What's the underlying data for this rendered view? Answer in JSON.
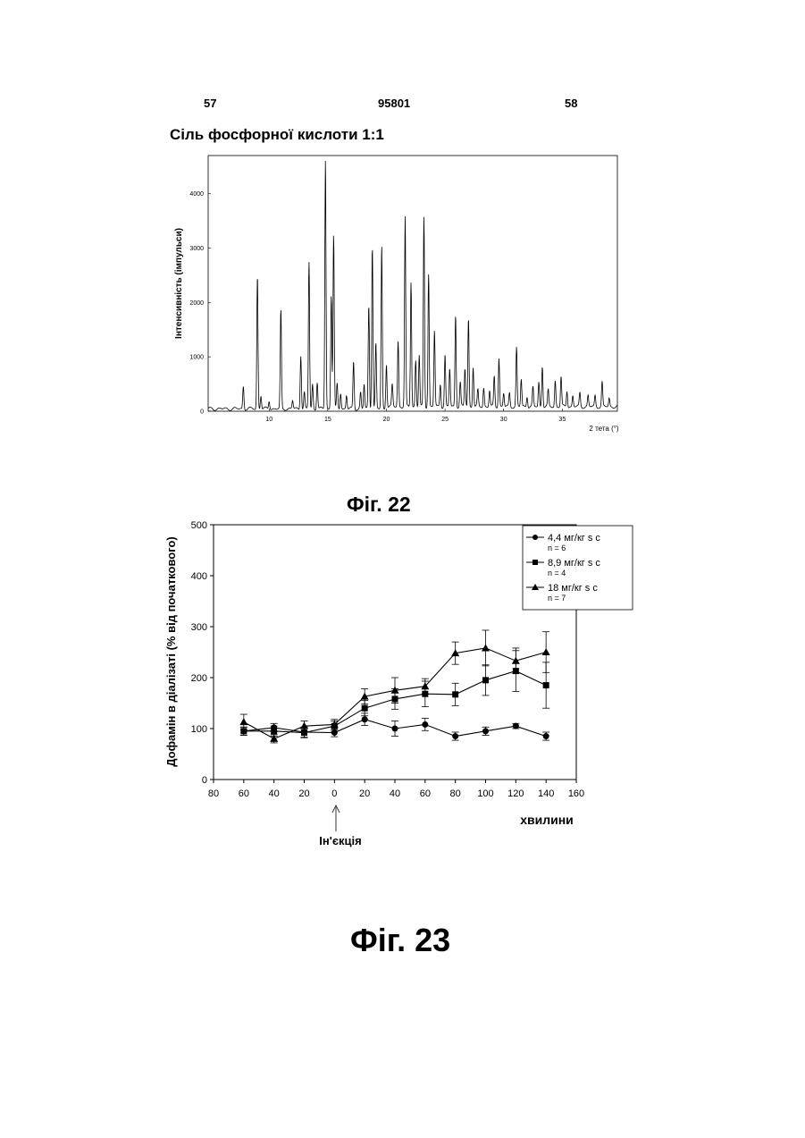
{
  "header": {
    "left": "57",
    "center": "95801",
    "right": "58"
  },
  "figure22": {
    "title": "Сіль фосфорної кислоти 1:1",
    "caption": "Фіг. 22",
    "chart_data": {
      "type": "line",
      "title": "Сіль фосфорної кислоти 1:1",
      "xlabel": "2 тета (°)",
      "ylabel": "Інтенсивність (імпульси)",
      "xlim": [
        4.8,
        39.7
      ],
      "ylim": [
        0,
        4700
      ],
      "xticks": [
        "10",
        "15",
        "20",
        "25",
        "30",
        "35"
      ],
      "yticks": [
        "0",
        "1000",
        "2000",
        "3000",
        "4000"
      ],
      "peaks": [
        {
          "x": 7.8,
          "y": 420
        },
        {
          "x": 9.0,
          "y": 2450
        },
        {
          "x": 9.3,
          "y": 250
        },
        {
          "x": 10.0,
          "y": 150
        },
        {
          "x": 11.0,
          "y": 1800
        },
        {
          "x": 12.0,
          "y": 150
        },
        {
          "x": 12.7,
          "y": 1000
        },
        {
          "x": 13.0,
          "y": 300
        },
        {
          "x": 13.4,
          "y": 2700
        },
        {
          "x": 13.7,
          "y": 450
        },
        {
          "x": 14.1,
          "y": 500
        },
        {
          "x": 14.8,
          "y": 4580
        },
        {
          "x": 15.3,
          "y": 2100
        },
        {
          "x": 15.5,
          "y": 3200
        },
        {
          "x": 15.8,
          "y": 450
        },
        {
          "x": 16.1,
          "y": 300
        },
        {
          "x": 16.6,
          "y": 250
        },
        {
          "x": 17.2,
          "y": 870
        },
        {
          "x": 17.8,
          "y": 300
        },
        {
          "x": 18.1,
          "y": 450
        },
        {
          "x": 18.5,
          "y": 1900
        },
        {
          "x": 18.8,
          "y": 3000
        },
        {
          "x": 19.1,
          "y": 1200
        },
        {
          "x": 19.6,
          "y": 3000
        },
        {
          "x": 20.0,
          "y": 800
        },
        {
          "x": 20.5,
          "y": 400
        },
        {
          "x": 21.0,
          "y": 1200
        },
        {
          "x": 21.6,
          "y": 3480
        },
        {
          "x": 22.1,
          "y": 2300
        },
        {
          "x": 22.5,
          "y": 850
        },
        {
          "x": 22.8,
          "y": 950
        },
        {
          "x": 23.2,
          "y": 3480
        },
        {
          "x": 23.6,
          "y": 2450
        },
        {
          "x": 24.1,
          "y": 1400
        },
        {
          "x": 24.6,
          "y": 420
        },
        {
          "x": 25.0,
          "y": 950
        },
        {
          "x": 25.4,
          "y": 700
        },
        {
          "x": 25.9,
          "y": 1700
        },
        {
          "x": 26.3,
          "y": 450
        },
        {
          "x": 26.7,
          "y": 700
        },
        {
          "x": 27.0,
          "y": 1620
        },
        {
          "x": 27.4,
          "y": 750
        },
        {
          "x": 27.8,
          "y": 300
        },
        {
          "x": 28.3,
          "y": 350
        },
        {
          "x": 28.8,
          "y": 300
        },
        {
          "x": 29.2,
          "y": 550
        },
        {
          "x": 29.6,
          "y": 900
        },
        {
          "x": 30.0,
          "y": 250
        },
        {
          "x": 30.5,
          "y": 250
        },
        {
          "x": 31.1,
          "y": 1080
        },
        {
          "x": 31.5,
          "y": 500
        },
        {
          "x": 32.0,
          "y": 200
        },
        {
          "x": 32.5,
          "y": 350
        },
        {
          "x": 33.0,
          "y": 450
        },
        {
          "x": 33.3,
          "y": 750
        },
        {
          "x": 33.8,
          "y": 300
        },
        {
          "x": 34.4,
          "y": 480
        },
        {
          "x": 34.9,
          "y": 550
        },
        {
          "x": 35.4,
          "y": 300
        },
        {
          "x": 35.9,
          "y": 200
        },
        {
          "x": 36.5,
          "y": 250
        },
        {
          "x": 37.2,
          "y": 200
        },
        {
          "x": 37.8,
          "y": 200
        },
        {
          "x": 38.4,
          "y": 450
        },
        {
          "x": 39.0,
          "y": 150
        }
      ]
    }
  },
  "figure23": {
    "caption": "Фіг. 23",
    "annotation": "Ін'єкція",
    "chart_data": {
      "type": "line",
      "xlabel": "хвилини",
      "ylabel": "Дофамін в діалізаті (% від початкового)",
      "xlim": [
        -80,
        160
      ],
      "ylim": [
        0,
        500
      ],
      "xticks": [
        "80",
        "60",
        "40",
        "20",
        "0",
        "20",
        "40",
        "60",
        "80",
        "100",
        "120",
        "140",
        "160"
      ],
      "yticks": [
        "0",
        "100",
        "200",
        "300",
        "400",
        "500"
      ],
      "x": [
        -60,
        -40,
        -20,
        0,
        20,
        40,
        60,
        80,
        100,
        120,
        140
      ],
      "series": [
        {
          "name": "4,4 мг/кг s c",
          "n": "n = 6",
          "marker": "circle",
          "values": [
            95,
            102,
            93,
            92,
            118,
            100,
            108,
            85,
            95,
            105,
            85
          ],
          "errors": [
            8,
            8,
            10,
            8,
            12,
            15,
            12,
            8,
            8,
            5,
            8
          ]
        },
        {
          "name": "8,9 мг/кг s c",
          "n": "n = 4",
          "marker": "square",
          "values": [
            95,
            95,
            92,
            105,
            140,
            158,
            168,
            167,
            195,
            213,
            185
          ],
          "errors": [
            8,
            10,
            10,
            10,
            15,
            20,
            25,
            22,
            30,
            40,
            45
          ]
        },
        {
          "name": "18 мг/кг s c",
          "n": "n = 7",
          "marker": "triangle",
          "values": [
            113,
            80,
            105,
            108,
            163,
            175,
            183,
            248,
            258,
            233,
            250
          ],
          "errors": [
            15,
            8,
            10,
            10,
            15,
            25,
            15,
            22,
            35,
            25,
            40
          ]
        }
      ]
    }
  }
}
